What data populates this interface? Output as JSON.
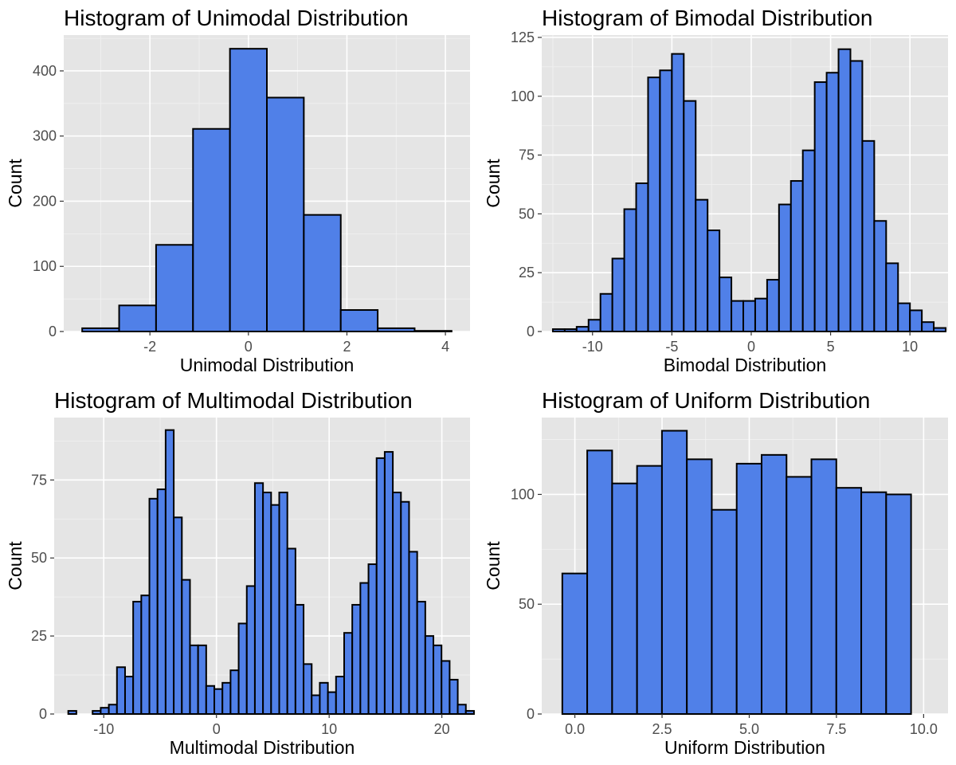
{
  "chart_data": [
    {
      "type": "bar",
      "title": "Histogram of Unimodal Distribution",
      "xlabel": "Unimodal Distribution",
      "ylabel": "Count",
      "xlim": [
        -3.75,
        4.5
      ],
      "ylim": [
        0,
        455
      ],
      "grid": true,
      "xticks": [
        -2,
        0,
        2,
        4
      ],
      "xtick_labels": [
        "-2",
        "0",
        "2",
        "4"
      ],
      "yticks": [
        0,
        100,
        200,
        300,
        400
      ],
      "ytick_labels": [
        "0",
        "100",
        "200",
        "300",
        "400"
      ],
      "bin_start": -3.375,
      "bin_width": 0.75,
      "values": [
        5,
        40,
        133,
        311,
        434,
        359,
        179,
        33,
        5,
        1
      ]
    },
    {
      "type": "bar",
      "title": "Histogram of Bimodal Distribution",
      "xlabel": "Bimodal Distribution",
      "ylabel": "Count",
      "xlim": [
        -13.2,
        12.4
      ],
      "ylim": [
        0,
        126
      ],
      "grid": true,
      "xticks": [
        -10,
        -5,
        0,
        5,
        10
      ],
      "xtick_labels": [
        "-10",
        "-5",
        "0",
        "5",
        "10"
      ],
      "yticks": [
        0,
        25,
        50,
        75,
        100,
        125
      ],
      "ytick_labels": [
        "0",
        "25",
        "50",
        "75",
        "100",
        "125"
      ],
      "bin_start": -12.5,
      "bin_width": 0.75,
      "values": [
        1,
        1,
        2,
        5,
        16,
        31,
        52,
        63,
        108,
        111,
        118,
        98,
        56,
        43,
        23,
        13,
        13,
        14,
        22,
        54,
        64,
        77,
        106,
        110,
        120,
        115,
        81,
        47,
        29,
        12,
        9,
        4,
        1.5
      ]
    },
    {
      "type": "bar",
      "title": "Histogram of Multimodal Distribution",
      "xlabel": "Multimodal Distribution",
      "ylabel": "Count",
      "xlim": [
        -14.4,
        22.5
      ],
      "ylim": [
        0,
        95
      ],
      "grid": true,
      "xticks": [
        -10,
        0,
        10,
        20
      ],
      "xtick_labels": [
        "-10",
        "0",
        "10",
        "20"
      ],
      "yticks": [
        0,
        25,
        50,
        75
      ],
      "ytick_labels": [
        "0",
        "25",
        "50",
        "75"
      ],
      "bin_start": -13.15,
      "bin_width": 0.72,
      "values": [
        1,
        0,
        0,
        1,
        2,
        3,
        15,
        12,
        36,
        38,
        69,
        72,
        91,
        63,
        43,
        22,
        22,
        9,
        8,
        10,
        14,
        29,
        41,
        74,
        71,
        67,
        71,
        53,
        35,
        16,
        6,
        10,
        7,
        12,
        26,
        35,
        42,
        48,
        82,
        84,
        71,
        68,
        52,
        36,
        25,
        22,
        17,
        11,
        3,
        1
      ]
    },
    {
      "type": "bar",
      "title": "Histogram of Uniform Distribution",
      "xlabel": "Uniform Distribution",
      "ylabel": "Count",
      "xlim": [
        -0.95,
        10.7
      ],
      "ylim": [
        0,
        135
      ],
      "grid": true,
      "xticks": [
        0,
        2.5,
        5,
        7.5,
        10
      ],
      "xtick_labels": [
        "0.0",
        "2.5",
        "5.0",
        "7.5",
        "10.0"
      ],
      "yticks": [
        0,
        50,
        100
      ],
      "ytick_labels": [
        "0",
        "50",
        "100"
      ],
      "bin_start": -0.36,
      "bin_width": 0.7143,
      "values": [
        64,
        120,
        105,
        113,
        129,
        116,
        93,
        114,
        118,
        108,
        116,
        103,
        101,
        100
      ]
    }
  ]
}
